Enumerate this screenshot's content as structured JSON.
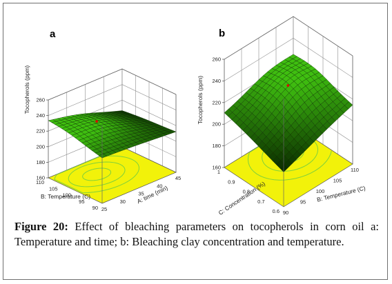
{
  "figure": {
    "label": "Figure 20:",
    "caption": "Effect of bleaching parameters on tocopherols in corn oil a: Temperature and time; b: Bleaching clay concentration and temperature."
  },
  "colors": {
    "surface_low": "#0a2a00",
    "surface_high": "#3fbf10",
    "floor": "#f2f20a",
    "contour": "#7fd13b",
    "grid": "#8c8c8c",
    "optimum": "#e00000"
  },
  "chart_data": [
    {
      "panel_label": "a",
      "type": "surface3d",
      "zlabel": "Tocopherols (ppm)",
      "zlim": [
        160,
        260
      ],
      "zticks": [
        "160",
        "180",
        "200",
        "220",
        "240",
        "260"
      ],
      "xlabel": "A: time (min)",
      "xlim": [
        25,
        45
      ],
      "xticks": [
        "25",
        "30",
        "35",
        "40",
        "45"
      ],
      "ylabel": "B: Temperature (C)",
      "ylim": [
        90,
        110
      ],
      "yticks": [
        "90",
        "95",
        "100",
        "105",
        "110"
      ],
      "surface_corners": {
        "x25_y90": 218,
        "x45_y90": 212,
        "x25_y110": 232,
        "x45_y110": 206
      },
      "surface_peak": {
        "x": 33,
        "y": 103,
        "z": 227
      },
      "optimum_point": {
        "x": 33,
        "y": 103,
        "z": 227
      }
    },
    {
      "panel_label": "b",
      "type": "surface3d",
      "zlabel": "Tocopherols (ppm)",
      "zlim": [
        160,
        260
      ],
      "zticks": [
        "160",
        "180",
        "200",
        "220",
        "240",
        "260"
      ],
      "xlabel": "B: Temperature (C)",
      "xlim": [
        90,
        110
      ],
      "xticks": [
        "90",
        "95",
        "100",
        "105",
        "110"
      ],
      "ylabel": "C: Concentration (%)",
      "ylim": [
        0.6,
        1.0
      ],
      "yticks": [
        "0.6",
        "0.7",
        "0.8",
        "0.9",
        "1"
      ],
      "surface_corners": {
        "x90_y0.6": 192,
        "x110_y0.6": 214,
        "x90_y1": 210,
        "x110_y1": 222
      },
      "surface_peak": {
        "x": 103,
        "y": 0.86,
        "z": 226
      },
      "optimum_point": {
        "x": 102,
        "y": 0.85,
        "z": 225
      }
    }
  ]
}
